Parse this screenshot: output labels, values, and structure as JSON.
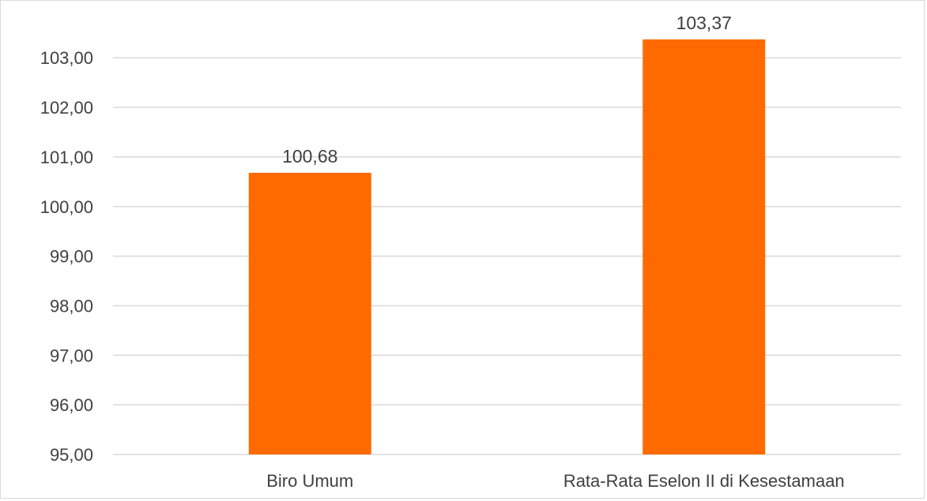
{
  "chart_data": {
    "type": "bar",
    "title": "",
    "xlabel": "",
    "ylabel": "",
    "categories": [
      "Biro Umum",
      "Rata-Rata Eselon II di Kesestamaan"
    ],
    "values": [
      100.68,
      103.37
    ],
    "value_labels": [
      "100,68",
      "103,37"
    ],
    "ylim": [
      95,
      103.37
    ],
    "y_ticks": [
      95,
      96,
      97,
      98,
      99,
      100,
      101,
      102,
      103
    ],
    "y_tick_labels": [
      "95,00",
      "96,00",
      "97,00",
      "98,00",
      "99,00",
      "100,00",
      "101,00",
      "102,00",
      "103,00"
    ],
    "bar_color": "#ff6a00",
    "grid": true,
    "legend": "none"
  }
}
